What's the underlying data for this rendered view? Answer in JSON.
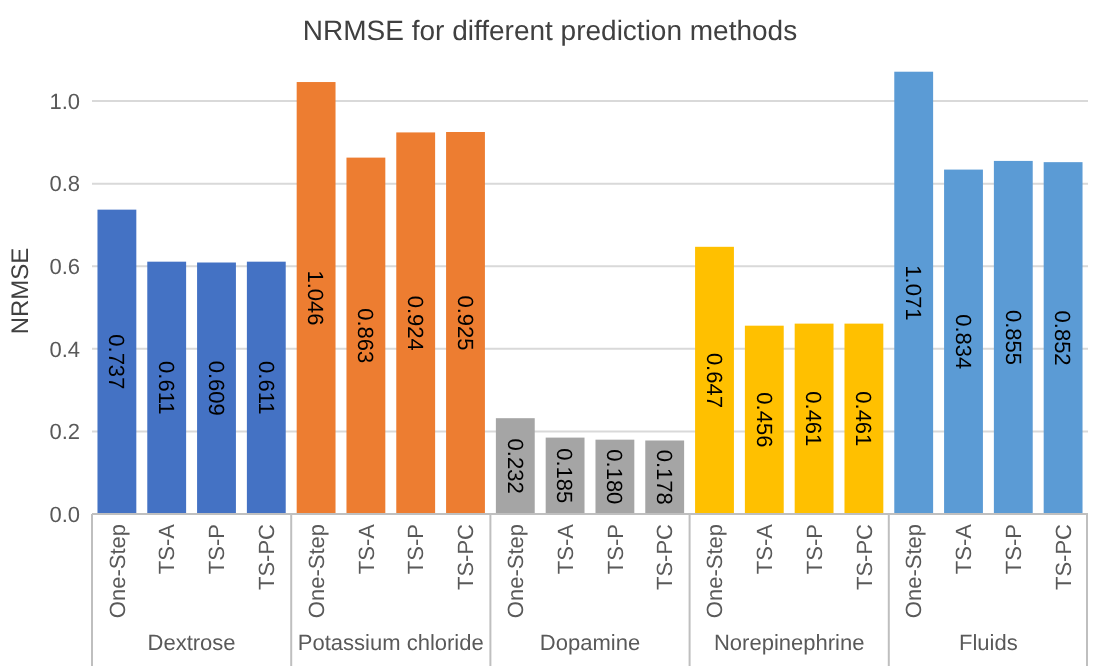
{
  "chart_data": {
    "type": "bar",
    "title": "NRMSE for different prediction methods",
    "ylabel": "NRMSE",
    "categories": [
      "One-Step",
      "TS-A",
      "TS-P",
      "TS-PC",
      "One-Step",
      "TS-A",
      "TS-P",
      "TS-PC",
      "One-Step",
      "TS-A",
      "TS-P",
      "TS-PC",
      "One-Step",
      "TS-A",
      "TS-P",
      "TS-PC",
      "One-Step",
      "TS-A",
      "TS-P",
      "TS-PC"
    ],
    "values": [
      0.737,
      0.611,
      0.609,
      0.611,
      1.046,
      0.863,
      0.924,
      0.925,
      0.232,
      0.185,
      0.18,
      0.178,
      0.647,
      0.456,
      0.461,
      0.461,
      1.071,
      0.834,
      0.855,
      0.852
    ],
    "value_labels": [
      "0.737",
      "0.611",
      "0.609",
      "0.611",
      "1.046",
      "0.863",
      "0.924",
      "0.925",
      "0.232",
      "0.185",
      "0.180",
      "0.178",
      "0.647",
      "0.456",
      "0.461",
      "0.461",
      "1.071",
      "0.834",
      "0.855",
      "0.852"
    ],
    "colors": [
      "#4472c4",
      "#4472c4",
      "#4472c4",
      "#4472c4",
      "#ed7d31",
      "#ed7d31",
      "#ed7d31",
      "#ed7d31",
      "#a5a5a5",
      "#a5a5a5",
      "#a5a5a5",
      "#a5a5a5",
      "#ffc000",
      "#ffc000",
      "#ffc000",
      "#ffc000",
      "#5b9bd5",
      "#5b9bd5",
      "#5b9bd5",
      "#5b9bd5"
    ],
    "annotations": [
      "Dextrose",
      "Potassium chloride",
      "Dopamine",
      "Norepinephrine",
      "Fluids"
    ],
    "ylim": [
      0,
      1.08
    ],
    "yticks": [
      {
        "value": 0,
        "label": "0.0"
      },
      {
        "value": 0.2,
        "label": "0.2"
      },
      {
        "value": 0.4,
        "label": "0.4"
      },
      {
        "value": 0.6,
        "label": "0.6"
      },
      {
        "value": 0.8,
        "label": "0.8"
      },
      {
        "value": 1,
        "label": "1.0"
      }
    ],
    "grid": "y"
  }
}
